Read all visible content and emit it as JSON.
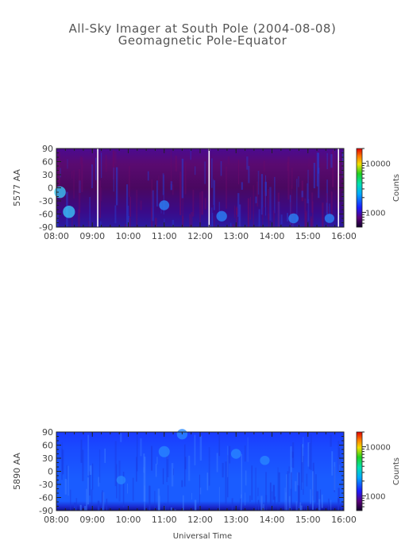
{
  "header": {
    "title": "All-Sky Imager at South Pole (2004-08-08)",
    "subtitle": "Geomagnetic Pole-Equator"
  },
  "colors": {
    "low": "#1a0a3a",
    "mid": "#1a5cff",
    "high": "#e01010"
  },
  "chart_data": [
    {
      "type": "heatmap",
      "wavelength_label": "5577 AA",
      "ylabel": "5577 AA",
      "xlabel": "",
      "ylim": [
        -90,
        90
      ],
      "xlim": [
        "08:00",
        "16:00"
      ],
      "y_ticks": [
        "90",
        "60",
        "30",
        "0",
        "-30",
        "-60",
        "-90"
      ],
      "x_ticks": [
        "08:00",
        "09:00",
        "10:00",
        "11:00",
        "12:00",
        "13:00",
        "14:00",
        "15:00",
        "16:00"
      ],
      "colorbar": {
        "label": "Counts",
        "ticks": [
          "10000",
          "1000"
        ],
        "scale": "log"
      },
      "background": "dark-purple",
      "gaps_hours": [
        1.15,
        4.25,
        7.85
      ],
      "features": [
        {
          "t": 0.1,
          "lat": -10,
          "intensity": 0.55
        },
        {
          "t": 0.35,
          "lat": -55,
          "intensity": 0.6
        },
        {
          "t": 3.0,
          "lat": -40,
          "intensity": 0.4
        },
        {
          "t": 4.6,
          "lat": -65,
          "intensity": 0.45
        },
        {
          "t": 6.6,
          "lat": -70,
          "intensity": 0.4
        },
        {
          "t": 7.6,
          "lat": -70,
          "intensity": 0.35
        }
      ]
    },
    {
      "type": "heatmap",
      "wavelength_label": "5890 AA",
      "ylabel": "5890 AA",
      "xlabel": "Universal Time",
      "ylim": [
        -90,
        90
      ],
      "xlim": [
        "08:00",
        "16:00"
      ],
      "y_ticks": [
        "90",
        "60",
        "30",
        "0",
        "-30",
        "-60",
        "-90"
      ],
      "x_ticks": [
        "08:00",
        "09:00",
        "10:00",
        "11:00",
        "12:00",
        "13:00",
        "14:00",
        "15:00",
        "16:00"
      ],
      "colorbar": {
        "label": "Counts",
        "ticks": [
          "10000",
          "1000"
        ],
        "scale": "log"
      },
      "background": "blue",
      "gaps_hours": [],
      "features": [
        {
          "t": 3.0,
          "lat": 45,
          "intensity": 0.5
        },
        {
          "t": 3.5,
          "lat": 85,
          "intensity": 0.45
        },
        {
          "t": 5.0,
          "lat": 40,
          "intensity": 0.4
        },
        {
          "t": 5.8,
          "lat": 25,
          "intensity": 0.35
        },
        {
          "t": 1.8,
          "lat": -20,
          "intensity": 0.3
        }
      ]
    }
  ]
}
